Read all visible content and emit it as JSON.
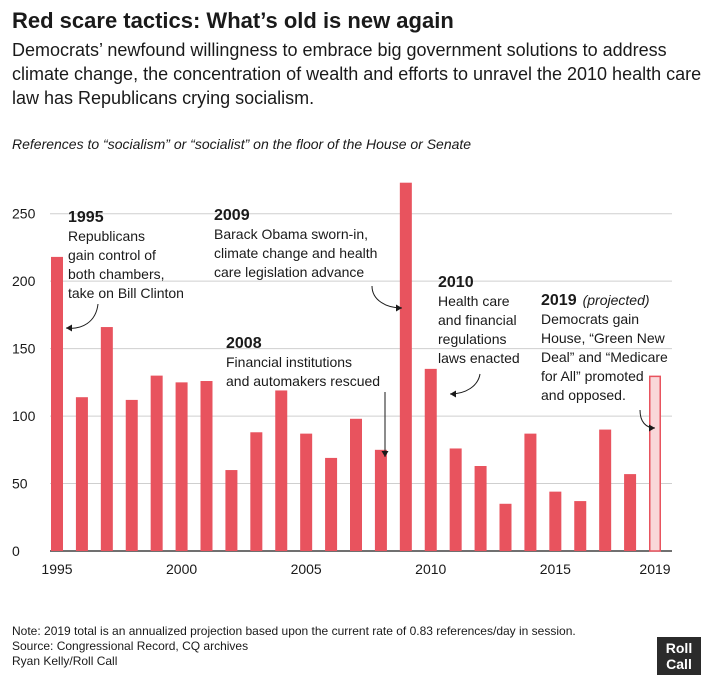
{
  "header": {
    "title": "Red scare tactics: What’s old is new again",
    "subtitle": "Democrats’ newfound willingness to embrace big government solutions to address climate change, the concentration of wealth and efforts to unravel the 2010 health care law has Republicans crying socialism.",
    "caption": "References to “socialism” or “socialist” on the floor of the House or Senate"
  },
  "chart_data": {
    "type": "bar",
    "x": [
      1995,
      1996,
      1997,
      1998,
      1999,
      2000,
      2001,
      2002,
      2003,
      2004,
      2005,
      2006,
      2007,
      2008,
      2009,
      2010,
      2011,
      2012,
      2013,
      2014,
      2015,
      2016,
      2017,
      2018,
      2019
    ],
    "values": [
      218,
      114,
      166,
      112,
      130,
      125,
      126,
      60,
      88,
      119,
      87,
      69,
      98,
      75,
      273,
      135,
      76,
      63,
      35,
      87,
      44,
      37,
      90,
      57,
      130
    ],
    "projected": [
      false,
      false,
      false,
      false,
      false,
      false,
      false,
      false,
      false,
      false,
      false,
      false,
      false,
      false,
      false,
      false,
      false,
      false,
      false,
      false,
      false,
      false,
      false,
      false,
      true
    ],
    "ylim": [
      0,
      275
    ],
    "yticks": [
      0,
      50,
      100,
      150,
      200,
      250
    ],
    "xticks": [
      "1995",
      "2000",
      "2005",
      "2010",
      "2015",
      "2019"
    ],
    "xlabel": "",
    "ylabel": "",
    "grid": true,
    "colors": {
      "bar": "#e8535e",
      "projected_fill": "#f9d7d9",
      "projected_stroke": "#e8535e"
    },
    "annotations": [
      {
        "year": "1995",
        "lines": [
          "Republicans",
          "gain control of",
          "both chambers,",
          "take on Bill Clinton"
        ],
        "target_year": 1995
      },
      {
        "year": "2009",
        "lines": [
          "Barack Obama sworn-in,",
          "climate change and health",
          "care legislation advance"
        ],
        "target_year": 2009
      },
      {
        "year": "2008",
        "lines": [
          "Financial institutions",
          "and automakers rescued"
        ],
        "target_year": 2008
      },
      {
        "year": "2010",
        "lines": [
          "Health care",
          "and financial",
          "regulations",
          "laws enacted"
        ],
        "target_year": 2010
      },
      {
        "year": "2019",
        "year_note": "(projected)",
        "lines": [
          "Democrats gain",
          "House, “Green New",
          "Deal” and “Medicare",
          "for All” promoted",
          "and opposed."
        ],
        "target_year": 2019
      }
    ]
  },
  "footer": {
    "note": "Note: 2019 total is an annualized projection based upon the current rate of 0.83 references/day in session.",
    "source": "Source: Congressional Record, CQ archives",
    "credit": "Ryan Kelly/Roll Call",
    "logo_line1": "Roll",
    "logo_line2": "Call"
  }
}
